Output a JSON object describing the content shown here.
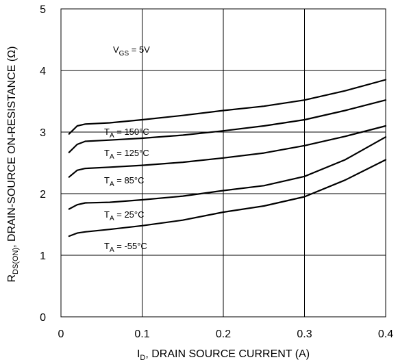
{
  "chart_data": {
    "type": "line",
    "xlabel": {
      "prefix": "I",
      "sub": "D",
      "rest": ", DRAIN SOURCE CURRENT (A)"
    },
    "ylabel": {
      "prefix": "R",
      "sub": "DS(ON)",
      "rest": ", DRAIN-SOURCE ON-RESISTANCE  (Ω)"
    },
    "xlim": [
      0,
      0.4
    ],
    "ylim": [
      0,
      5
    ],
    "x_ticks": [
      "0",
      "0.1",
      "0.2",
      "0.3",
      "0.4"
    ],
    "y_ticks": [
      "0",
      "1",
      "2",
      "3",
      "4",
      "5"
    ],
    "grid": true,
    "condition": {
      "prefix": "V",
      "sub": "GS",
      "rest": " = 5V"
    },
    "series": [
      {
        "name": "T_A = 150°C",
        "label": {
          "prefix": "T",
          "sub": "A",
          "rest": " = 150°C"
        },
        "x": [
          0.01,
          0.02,
          0.03,
          0.06,
          0.1,
          0.15,
          0.2,
          0.25,
          0.3,
          0.35,
          0.4
        ],
        "y": [
          2.97,
          3.1,
          3.13,
          3.15,
          3.2,
          3.27,
          3.35,
          3.42,
          3.52,
          3.67,
          3.85
        ]
      },
      {
        "name": "T_A = 125°C",
        "label": {
          "prefix": "T",
          "sub": "A",
          "rest": " = 125°C"
        },
        "x": [
          0.01,
          0.02,
          0.03,
          0.06,
          0.1,
          0.15,
          0.2,
          0.25,
          0.3,
          0.35,
          0.4
        ],
        "y": [
          2.67,
          2.8,
          2.85,
          2.87,
          2.9,
          2.95,
          3.02,
          3.1,
          3.2,
          3.35,
          3.52
        ]
      },
      {
        "name": "T_A = 85°C",
        "label": {
          "prefix": "T",
          "sub": "A",
          "rest": " = 85°C"
        },
        "x": [
          0.01,
          0.02,
          0.03,
          0.06,
          0.1,
          0.15,
          0.2,
          0.25,
          0.3,
          0.35,
          0.4
        ],
        "y": [
          2.27,
          2.38,
          2.41,
          2.43,
          2.46,
          2.51,
          2.58,
          2.66,
          2.78,
          2.93,
          3.1
        ]
      },
      {
        "name": "T_A = 25°C",
        "label": {
          "prefix": "T",
          "sub": "A",
          "rest": " = 25°C"
        },
        "x": [
          0.01,
          0.02,
          0.03,
          0.06,
          0.1,
          0.15,
          0.2,
          0.25,
          0.3,
          0.35,
          0.4
        ],
        "y": [
          1.75,
          1.82,
          1.85,
          1.86,
          1.9,
          1.96,
          2.05,
          2.13,
          2.28,
          2.55,
          2.92
        ]
      },
      {
        "name": "T_A = -55°C",
        "label": {
          "prefix": "T",
          "sub": "A",
          "rest": " = -55°C"
        },
        "x": [
          0.01,
          0.02,
          0.03,
          0.06,
          0.1,
          0.15,
          0.2,
          0.25,
          0.3,
          0.35,
          0.4
        ],
        "y": [
          1.31,
          1.36,
          1.38,
          1.42,
          1.48,
          1.57,
          1.7,
          1.8,
          1.95,
          2.22,
          2.55
        ]
      }
    ]
  }
}
